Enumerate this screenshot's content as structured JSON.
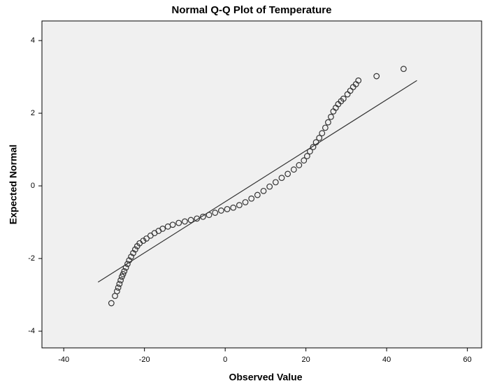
{
  "chart_data": {
    "type": "scatter",
    "title": "Normal Q-Q Plot of Temperature",
    "x_label": "Observed Value",
    "y_label": "Expected Normal",
    "xlim": [
      -45.4,
      63.7
    ],
    "ylim": [
      -4.46,
      4.54
    ],
    "xticks": [
      -40,
      -20,
      0,
      20,
      40,
      60
    ],
    "yticks": [
      -4,
      -2,
      0,
      2,
      4
    ],
    "x": [
      -28.2,
      -27.3,
      -26.8,
      -26.5,
      -26.2,
      -25.9,
      -25.6,
      -25.3,
      -25.0,
      -24.6,
      -24.2,
      -23.8,
      -23.3,
      -22.8,
      -22.3,
      -21.8,
      -21.2,
      -20.3,
      -19.5,
      -18.5,
      -17.5,
      -16.5,
      -15.5,
      -14.2,
      -13.0,
      -11.5,
      -10.0,
      -8.5,
      -7.0,
      -5.5,
      -4.0,
      -2.5,
      -1.0,
      0.5,
      2.0,
      3.5,
      5.0,
      6.5,
      8.0,
      9.5,
      11.0,
      12.5,
      14.0,
      15.5,
      17.0,
      18.3,
      19.5,
      20.3,
      21.0,
      21.8,
      22.5,
      23.3,
      24.0,
      24.8,
      25.5,
      26.2,
      26.8,
      27.4,
      28.0,
      28.7,
      29.3,
      30.3,
      31.0,
      31.7,
      32.4,
      33.0,
      37.5,
      44.2
    ],
    "values": [
      -3.23,
      -3.03,
      -2.9,
      -2.8,
      -2.7,
      -2.6,
      -2.5,
      -2.43,
      -2.35,
      -2.25,
      -2.15,
      -2.05,
      -1.95,
      -1.85,
      -1.75,
      -1.66,
      -1.58,
      -1.51,
      -1.45,
      -1.37,
      -1.3,
      -1.24,
      -1.18,
      -1.12,
      -1.07,
      -1.02,
      -0.98,
      -0.94,
      -0.9,
      -0.85,
      -0.8,
      -0.74,
      -0.68,
      -0.64,
      -0.6,
      -0.53,
      -0.45,
      -0.35,
      -0.25,
      -0.14,
      -0.02,
      0.1,
      0.22,
      0.33,
      0.45,
      0.57,
      0.7,
      0.82,
      0.95,
      1.07,
      1.2,
      1.32,
      1.45,
      1.6,
      1.75,
      1.9,
      2.05,
      2.15,
      2.25,
      2.33,
      2.4,
      2.52,
      2.62,
      2.72,
      2.8,
      2.9,
      3.02,
      3.22
    ],
    "color": "#333333",
    "reference_line": {
      "x": [
        -31.5,
        47.5
      ],
      "values": [
        -2.65,
        2.9
      ]
    }
  }
}
